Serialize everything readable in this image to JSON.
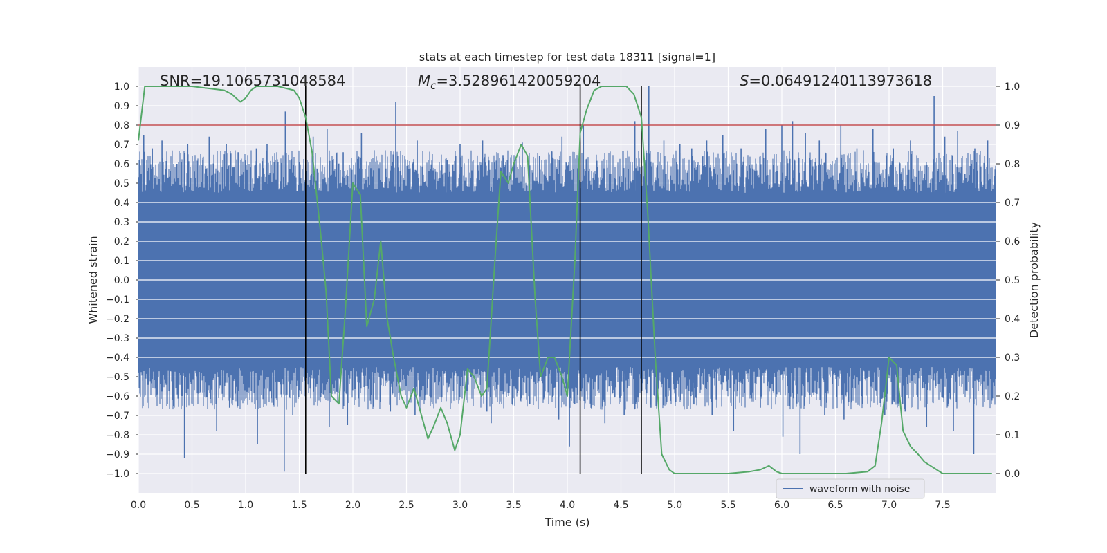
{
  "chart_data": {
    "type": "line",
    "title": "stats at each timestep for test data 18311 [signal=1]",
    "xlabel": "Time (s)",
    "ylabel": "Whitened strain",
    "y2label": "Detection probability",
    "xlim": [
      0,
      8
    ],
    "ylim": [
      -1.1,
      1.1
    ],
    "y2lim": [
      -0.05,
      1.05
    ],
    "x_ticks": [
      0.0,
      0.5,
      1.0,
      1.5,
      2.0,
      2.5,
      3.0,
      3.5,
      4.0,
      4.5,
      5.0,
      5.5,
      6.0,
      6.5,
      7.0,
      7.5
    ],
    "x_tick_labels": [
      "0.0",
      "0.5",
      "1.0",
      "1.5",
      "2.0",
      "2.5",
      "3.0",
      "3.5",
      "4.0",
      "4.5",
      "5.0",
      "5.5",
      "6.0",
      "6.5",
      "7.0",
      "7.5"
    ],
    "y_ticks": [
      -1.0,
      -0.9,
      -0.8,
      -0.7,
      -0.6,
      -0.5,
      -0.4,
      -0.3,
      -0.2,
      -0.1,
      0.0,
      0.1,
      0.2,
      0.3,
      0.4,
      0.5,
      0.6,
      0.7,
      0.8,
      0.9,
      1.0
    ],
    "y_tick_labels": [
      "−1.0",
      "−0.9",
      "−0.8",
      "−0.7",
      "−0.6",
      "−0.5",
      "−0.4",
      "−0.3",
      "−0.2",
      "−0.1",
      "0.0",
      "0.1",
      "0.2",
      "0.3",
      "0.4",
      "0.5",
      "0.6",
      "0.7",
      "0.8",
      "0.9",
      "1.0"
    ],
    "y2_ticks": [
      0.0,
      0.1,
      0.2,
      0.3,
      0.4,
      0.5,
      0.6,
      0.7,
      0.8,
      0.9,
      1.0
    ],
    "y2_tick_labels": [
      "0.0",
      "0.1",
      "0.2",
      "0.3",
      "0.4",
      "0.5",
      "0.6",
      "0.7",
      "0.8",
      "0.9",
      "1.0"
    ],
    "grid": true,
    "legend": {
      "position": "lower-right",
      "entries": [
        {
          "label": "waveform with noise",
          "color": "#4c72b0"
        }
      ]
    },
    "annotations": {
      "snr": {
        "label": "SNR",
        "value": "=19.1065731048584"
      },
      "mc": {
        "label": "M",
        "sub": "c",
        "value": "=3.528961420059204"
      },
      "s": {
        "label": "S",
        "value": "=0.06491240113973618"
      }
    },
    "threshold": {
      "axis": "y2",
      "value": 0.9,
      "color": "#c44e52"
    },
    "vlines": [
      1.56,
      4.12,
      4.69
    ],
    "waveform": {
      "name": "waveform with noise",
      "color": "#4c72b0",
      "band_lower": -0.4,
      "band_upper": 0.4,
      "spikes": [
        [
          0.05,
          0.75
        ],
        [
          0.13,
          0.68
        ],
        [
          0.22,
          0.72
        ],
        [
          0.36,
          0.6
        ],
        [
          0.46,
          0.7
        ],
        [
          0.6,
          0.62
        ],
        [
          0.66,
          0.74
        ],
        [
          0.82,
          0.7
        ],
        [
          0.93,
          0.66
        ],
        [
          1.1,
          0.68
        ],
        [
          1.2,
          0.7
        ],
        [
          1.37,
          0.87
        ],
        [
          1.63,
          0.74
        ],
        [
          1.76,
          0.78
        ],
        [
          1.91,
          0.66
        ],
        [
          2.08,
          0.76
        ],
        [
          2.4,
          0.92
        ],
        [
          2.6,
          0.72
        ],
        [
          2.88,
          0.62
        ],
        [
          3.0,
          0.7
        ],
        [
          3.21,
          0.72
        ],
        [
          3.4,
          0.64
        ],
        [
          3.58,
          0.71
        ],
        [
          3.74,
          0.64
        ],
        [
          3.95,
          0.74
        ],
        [
          4.15,
          0.8
        ],
        [
          4.37,
          0.62
        ],
        [
          4.63,
          0.82
        ],
        [
          4.76,
          1.0
        ],
        [
          4.9,
          0.72
        ],
        [
          5.05,
          0.7
        ],
        [
          5.16,
          0.68
        ],
        [
          5.3,
          0.72
        ],
        [
          5.45,
          0.75
        ],
        [
          5.62,
          0.68
        ],
        [
          5.85,
          0.78
        ],
        [
          6.0,
          0.8
        ],
        [
          6.1,
          0.82
        ],
        [
          6.22,
          0.76
        ],
        [
          6.35,
          0.72
        ],
        [
          6.55,
          0.8
        ],
        [
          6.7,
          0.68
        ],
        [
          6.85,
          0.78
        ],
        [
          7.04,
          0.68
        ],
        [
          7.2,
          0.72
        ],
        [
          7.42,
          0.95
        ],
        [
          7.52,
          0.74
        ],
        [
          7.64,
          0.77
        ],
        [
          7.8,
          0.68
        ],
        [
          7.92,
          0.72
        ],
        [
          0.04,
          -0.52
        ],
        [
          0.27,
          -0.64
        ],
        [
          0.43,
          -0.92
        ],
        [
          0.62,
          -0.58
        ],
        [
          0.73,
          -0.78
        ],
        [
          0.85,
          -0.66
        ],
        [
          1.11,
          -0.85
        ],
        [
          1.36,
          -0.99
        ],
        [
          1.44,
          -0.7
        ],
        [
          1.78,
          -0.76
        ],
        [
          1.95,
          -0.75
        ],
        [
          2.11,
          -0.55
        ],
        [
          2.35,
          -0.68
        ],
        [
          2.58,
          -0.7
        ],
        [
          2.74,
          -0.64
        ],
        [
          2.97,
          -0.62
        ],
        [
          3.25,
          -0.68
        ],
        [
          3.29,
          -0.74
        ],
        [
          3.65,
          -0.64
        ],
        [
          3.92,
          -0.72
        ],
        [
          4.02,
          -0.86
        ],
        [
          4.35,
          -0.74
        ],
        [
          4.53,
          -0.7
        ],
        [
          4.78,
          -0.66
        ],
        [
          4.95,
          -0.56
        ],
        [
          5.18,
          -0.64
        ],
        [
          5.35,
          -0.7
        ],
        [
          5.55,
          -0.78
        ],
        [
          5.8,
          -0.66
        ],
        [
          6.01,
          -0.81
        ],
        [
          6.17,
          -0.9
        ],
        [
          6.4,
          -0.7
        ],
        [
          6.58,
          -0.72
        ],
        [
          6.75,
          -0.64
        ],
        [
          6.96,
          -0.7
        ],
        [
          7.15,
          -0.68
        ],
        [
          7.35,
          -0.76
        ],
        [
          7.6,
          -0.78
        ],
        [
          7.79,
          -0.9
        ],
        [
          7.93,
          -0.62
        ]
      ]
    },
    "series": [
      {
        "name": "Detection probability",
        "axis": "y2",
        "color": "#55a868",
        "x": [
          0.0,
          0.06,
          0.12,
          0.2,
          0.5,
          0.8,
          0.87,
          0.95,
          1.0,
          1.05,
          1.1,
          1.3,
          1.45,
          1.5,
          1.56,
          1.62,
          1.7,
          1.75,
          1.8,
          1.87,
          1.93,
          2.0,
          2.07,
          2.13,
          2.2,
          2.26,
          2.32,
          2.38,
          2.45,
          2.5,
          2.57,
          2.63,
          2.7,
          2.75,
          2.82,
          2.88,
          2.95,
          3.0,
          3.07,
          3.13,
          3.2,
          3.25,
          3.32,
          3.38,
          3.45,
          3.5,
          3.57,
          3.63,
          3.7,
          3.75,
          3.82,
          3.88,
          3.95,
          4.0,
          4.07,
          4.12,
          4.18,
          4.25,
          4.32,
          4.45,
          4.55,
          4.62,
          4.69,
          4.75,
          4.82,
          4.88,
          4.95,
          5.0,
          5.2,
          5.5,
          5.7,
          5.8,
          5.88,
          5.95,
          6.0,
          6.3,
          6.6,
          6.8,
          6.87,
          6.93,
          7.0,
          7.07,
          7.13,
          7.2,
          7.27,
          7.33,
          7.5,
          7.8,
          7.96
        ],
        "y": [
          0.86,
          1.0,
          1.0,
          1.0,
          1.0,
          0.99,
          0.98,
          0.96,
          0.97,
          0.99,
          1.0,
          1.0,
          0.99,
          0.97,
          0.92,
          0.83,
          0.62,
          0.47,
          0.2,
          0.18,
          0.42,
          0.75,
          0.72,
          0.38,
          0.45,
          0.6,
          0.4,
          0.3,
          0.2,
          0.17,
          0.22,
          0.16,
          0.09,
          0.12,
          0.17,
          0.13,
          0.06,
          0.1,
          0.27,
          0.25,
          0.2,
          0.22,
          0.53,
          0.78,
          0.75,
          0.8,
          0.85,
          0.82,
          0.45,
          0.25,
          0.3,
          0.3,
          0.25,
          0.2,
          0.55,
          0.88,
          0.94,
          0.99,
          1.0,
          1.0,
          1.0,
          0.98,
          0.92,
          0.67,
          0.3,
          0.05,
          0.01,
          0.0,
          0.0,
          0.0,
          0.005,
          0.01,
          0.02,
          0.005,
          0.0,
          0.0,
          0.0,
          0.005,
          0.02,
          0.13,
          0.3,
          0.28,
          0.11,
          0.07,
          0.05,
          0.03,
          0.0,
          0.0,
          0.0
        ]
      }
    ]
  }
}
